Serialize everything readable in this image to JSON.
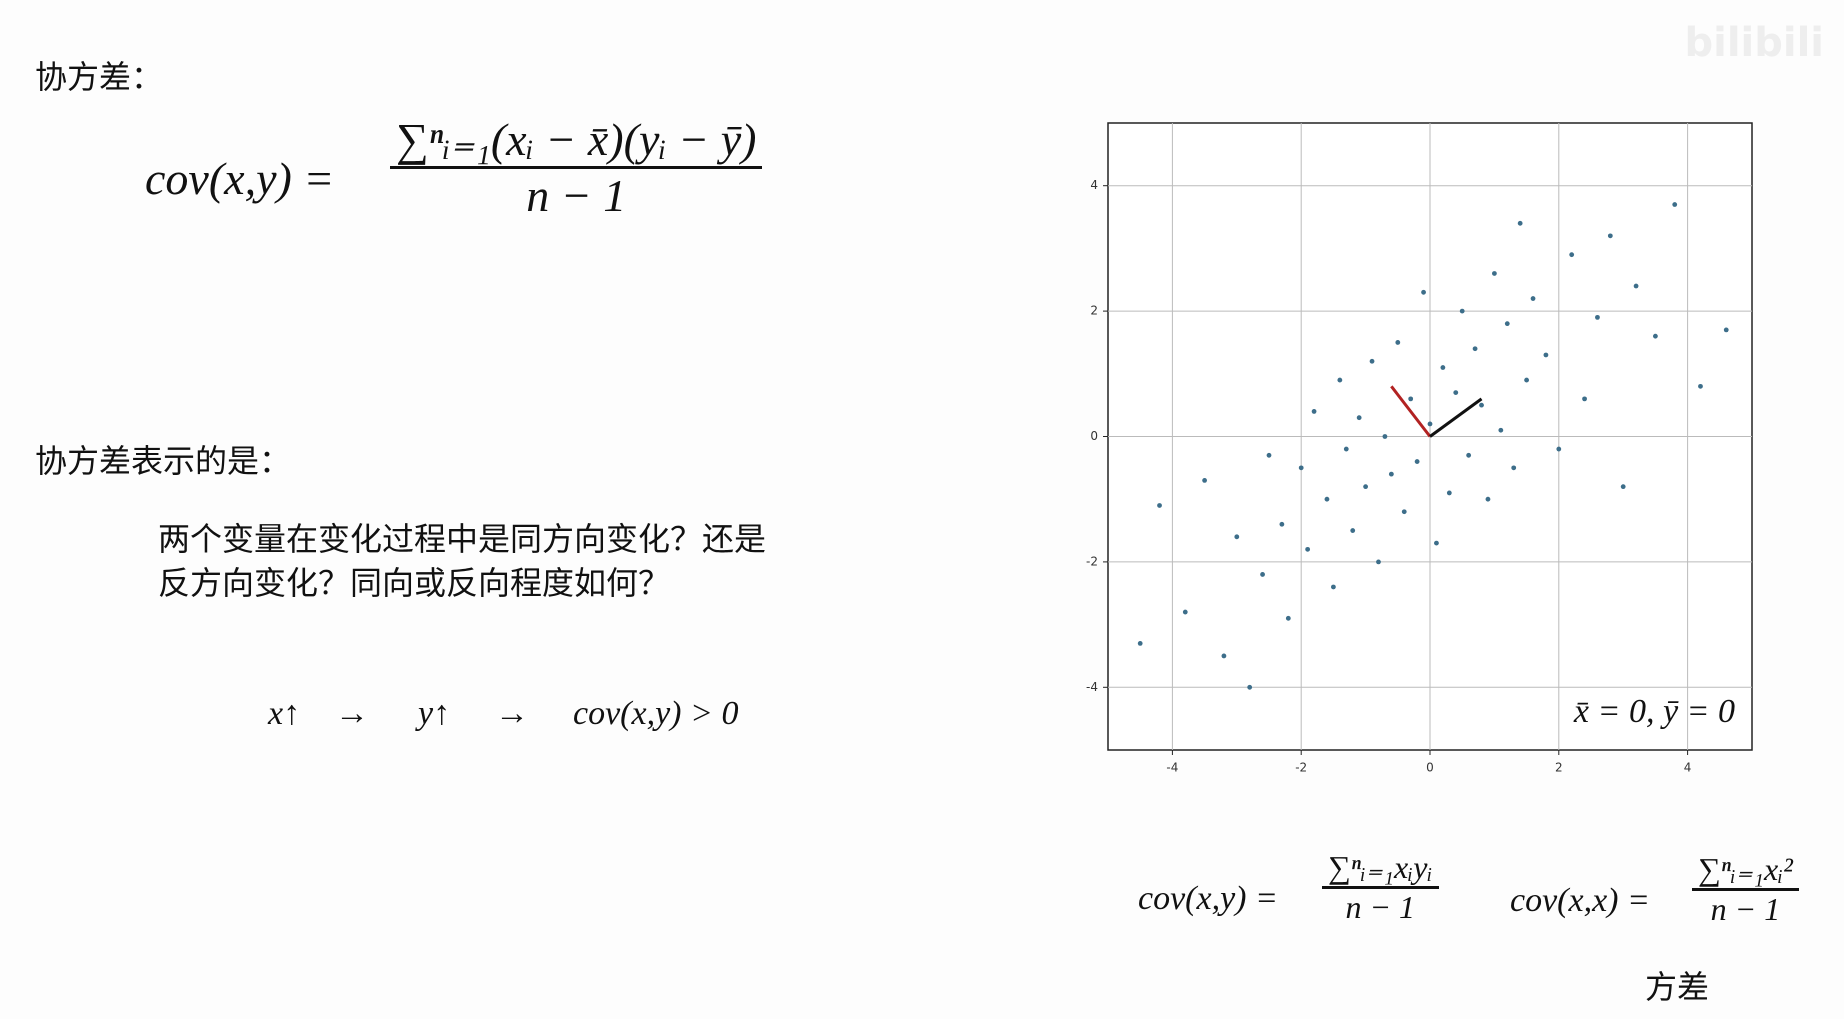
{
  "header": {
    "title": "协方差：",
    "watermark": "bilibili"
  },
  "formula_main": {
    "lhs": "cov(x,y) =",
    "numerator": "∑ⁿᵢ₌₁(xᵢ − x̄)(yᵢ − ȳ)",
    "denominator": "n − 1"
  },
  "section": {
    "title": "协方差表示的是：",
    "lines": [
      "两个变量在变化过程中是同方向变化？还是",
      "反方向变化？同向或反向程度如何？"
    ],
    "relation": [
      "x↑",
      "→",
      "y↑",
      "→",
      "cov(x,y) > 0"
    ]
  },
  "formula_cov": {
    "lhs": "cov(x,y) =",
    "numerator": "∑ⁿᵢ₌₁xᵢyᵢ",
    "denominator": "n − 1"
  },
  "formula_var": {
    "lhs": "cov(x,x) =",
    "numerator": "∑ⁿᵢ₌₁xᵢ²",
    "denominator": "n − 1",
    "caption": "方差"
  },
  "chart_data": {
    "type": "scatter",
    "annotation": "x̄ = 0, ȳ = 0",
    "xlim": [
      -5,
      5
    ],
    "ylim": [
      -5,
      5
    ],
    "xticks": [
      -4,
      -2,
      0,
      2,
      4
    ],
    "yticks": [
      -4,
      -2,
      0,
      2,
      4
    ],
    "grid": true,
    "series": [
      {
        "color": "#3d6e8a",
        "x": [
          -4.5,
          -4.2,
          -3.8,
          -3.5,
          -3.2,
          -3.0,
          -2.8,
          -2.6,
          -2.5,
          -2.3,
          -2.2,
          -2.0,
          -1.9,
          -1.8,
          -1.6,
          -1.5,
          -1.4,
          -1.3,
          -1.2,
          -1.1,
          -1.0,
          -0.9,
          -0.8,
          -0.7,
          -0.6,
          -0.5,
          -0.4,
          -0.3,
          -0.2,
          -0.1,
          0,
          0.1,
          0.2,
          0.3,
          0.4,
          0.5,
          0.6,
          0.7,
          0.8,
          0.9,
          1.0,
          1.1,
          1.2,
          1.3,
          1.4,
          1.5,
          1.6,
          1.8,
          2.0,
          2.2,
          2.4,
          2.6,
          2.8,
          3.0,
          3.2,
          3.5,
          3.8,
          4.2,
          4.6
        ],
        "values": [
          -3.3,
          -1.1,
          -2.8,
          -0.7,
          -3.5,
          -1.6,
          -4.0,
          -2.2,
          -0.3,
          -1.4,
          -2.9,
          -0.5,
          -1.8,
          0.4,
          -1.0,
          -2.4,
          0.9,
          -0.2,
          -1.5,
          0.3,
          -0.8,
          1.2,
          -2.0,
          0.0,
          -0.6,
          1.5,
          -1.2,
          0.6,
          -0.4,
          2.3,
          0.2,
          -1.7,
          1.1,
          -0.9,
          0.7,
          2.0,
          -0.3,
          1.4,
          0.5,
          -1.0,
          2.6,
          0.1,
          1.8,
          -0.5,
          3.4,
          0.9,
          2.2,
          1.3,
          -0.2,
          2.9,
          0.6,
          1.9,
          3.2,
          -0.8,
          2.4,
          1.6,
          3.7,
          0.8,
          1.7
        ]
      }
    ],
    "vectors": [
      {
        "color": "#b22222",
        "x": [
          0,
          -0.6
        ],
        "y": [
          0,
          0.8
        ]
      },
      {
        "color": "#111111",
        "x": [
          0,
          0.8
        ],
        "y": [
          0,
          0.6
        ]
      }
    ]
  }
}
